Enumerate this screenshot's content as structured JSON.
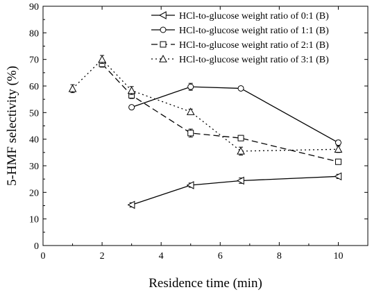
{
  "chart_data": {
    "type": "line",
    "xlabel": "Residence time (min)",
    "ylabel": "5-HMF selectivity (%)",
    "xlim": [
      0,
      11
    ],
    "ylim": [
      0,
      90
    ],
    "xticks": [
      0,
      2,
      4,
      6,
      8,
      10
    ],
    "yticks": [
      0,
      10,
      20,
      30,
      40,
      50,
      60,
      70,
      80,
      90
    ],
    "legend_position": "top-right",
    "series": [
      {
        "name": "HCl-to-glucose weight ratio of 0:1 (B)",
        "marker": "left-triangle",
        "line_style": "solid",
        "x": [
          3,
          5,
          6.7,
          10
        ],
        "y": [
          15.3,
          22.7,
          24.4,
          26.0
        ],
        "err": [
          0.8,
          0.8,
          1.0,
          0.8
        ]
      },
      {
        "name": "HCl-to-glucose weight ratio of 1:1 (B)",
        "marker": "circle",
        "line_style": "solid",
        "x": [
          3,
          5,
          6.7,
          10
        ],
        "y": [
          52.0,
          59.7,
          59.1,
          38.7
        ],
        "err": [
          0.6,
          1.3,
          0.7,
          0.9
        ]
      },
      {
        "name": "HCl-to-glucose weight ratio of 2:1 (B)",
        "marker": "square",
        "line_style": "dashed",
        "x": [
          2,
          3,
          5,
          6.7,
          10
        ],
        "y": [
          68.3,
          56.5,
          42.3,
          40.4,
          31.5
        ],
        "err": [
          1.2,
          1.2,
          1.5,
          1.0,
          0.8
        ]
      },
      {
        "name": "HCl-to-glucose weight ratio of 3:1 (B)",
        "marker": "triangle",
        "line_style": "dotted",
        "x": [
          1,
          2,
          3,
          5,
          6.7,
          10
        ],
        "y": [
          59.0,
          70.0,
          58.3,
          50.3,
          35.5,
          36.2
        ],
        "err": [
          1.5,
          1.5,
          1.5,
          1.0,
          1.5,
          1.2
        ]
      }
    ]
  }
}
